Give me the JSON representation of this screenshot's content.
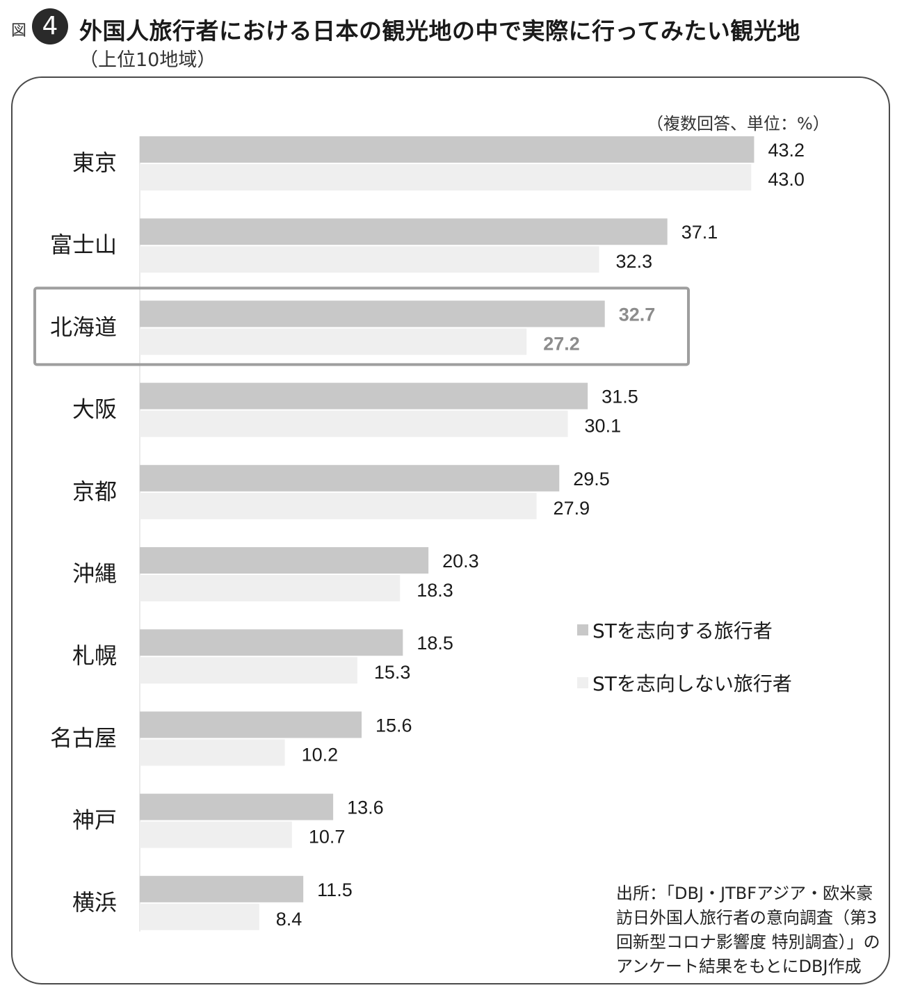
{
  "figure": {
    "prefix": "図",
    "number": "4",
    "title": "外国人旅行者における日本の観光地の中で実際に行ってみたい観光地",
    "subtitle": "（上位10地域）",
    "unit_note": "（複数回答、単位：%）",
    "source": "出所：「DBJ・JTBFアジア・欧米豪訪日外国人旅行者の意向調査（第3回新型コロナ影響度 特別調査）」のアンケート結果をもとにDBJ作成"
  },
  "chart_data": {
    "type": "bar",
    "orientation": "horizontal",
    "categories": [
      "東京",
      "富士山",
      "北海道",
      "大阪",
      "京都",
      "沖縄",
      "札幌",
      "名古屋",
      "神戸",
      "横浜"
    ],
    "series": [
      {
        "name": "STを志向する旅行者",
        "values": [
          43.2,
          37.1,
          32.7,
          31.5,
          29.5,
          20.3,
          18.5,
          15.6,
          13.6,
          11.5
        ],
        "labels": [
          "43.2",
          "37.1",
          "32.7",
          "31.5",
          "29.5",
          "20.3",
          "18.5",
          "15.6",
          "13.6",
          "11.5"
        ],
        "color": "#c8c8c8"
      },
      {
        "name": "STを志向しない旅行者",
        "values": [
          43.0,
          32.3,
          27.2,
          30.1,
          27.9,
          18.3,
          15.3,
          10.2,
          10.7,
          8.4
        ],
        "labels": [
          "43.0",
          "32.3",
          "27.2",
          "30.1",
          "27.9",
          "18.3",
          "15.3",
          "10.2",
          "10.7",
          "8.4"
        ],
        "color": "#efefef"
      }
    ],
    "highlight_category": "北海道",
    "highlight_label_color": "#8c8c8c",
    "highlight_box_color": "#9e9e9e",
    "axis_line_color": "#d4d4d4",
    "legend_position": "right-middle"
  }
}
